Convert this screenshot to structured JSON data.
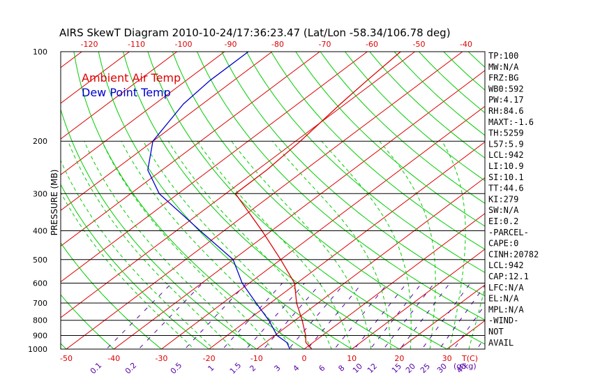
{
  "title": "AIRS SkewT Diagram 2010-10-24/17:36:23.47 (Lat/Lon -58.34/106.78 deg)",
  "legend": {
    "ambient": "Ambient Air Temp",
    "dewpoint": "Dew Point Temp"
  },
  "colors": {
    "ambient": "#dd0000",
    "dewpoint": "#0000cc",
    "isotherm": "#dd0000",
    "dry_adiabat": "#00cc00",
    "moist_adiabat": "#00cc00",
    "mixing_ratio": "#5500aa",
    "isobar": "#000000",
    "text": "#000000"
  },
  "stats": [
    "TP:100",
    "MW:N/A",
    "FRZ:BG",
    "WB0:592",
    "PW:4.17",
    "RH:84.6",
    "MAXT:-1.6",
    "TH:5259",
    "L57:5.9",
    "LCL:942",
    "LI:10.9",
    "SI:10.1",
    "TT:44.6",
    "KI:279",
    "SW:N/A",
    "EI:0.2",
    "-PARCEL-",
    "CAPE:0",
    "CINH:20782",
    "LCL:942",
    "CAP:12.1",
    "LFC:N/A",
    "EL:N/A",
    "MPL:N/A",
    "-WIND-",
    "NOT",
    "AVAIL"
  ],
  "chart_data": {
    "type": "line",
    "title": "AIRS SkewT Diagram 2010-10-24/17:36:23.47 (Lat/Lon -58.34/106.78 deg)",
    "ylabel": "PRESSURE (MB)",
    "xlabel": "T(C)",
    "mixing_ratio_label": "(g/kg)",
    "y_scale": "log",
    "ylim": [
      1000,
      100
    ],
    "pressure_ticks": [
      100,
      200,
      300,
      400,
      500,
      600,
      700,
      800,
      900,
      1000
    ],
    "pressure_tick_labels": [
      "100",
      "200",
      "300",
      "400",
      "500",
      "600",
      "700",
      "800",
      "900",
      "1000"
    ],
    "bottom_temp_ticks": [
      -50,
      -40,
      -30,
      -20,
      -10,
      0,
      10,
      20,
      30
    ],
    "bottom_temp_labels": [
      "-50",
      "-40",
      "-30",
      "-20",
      "-10",
      "0",
      "10",
      "20",
      "30"
    ],
    "top_temp_ticks": [
      -120,
      -110,
      -100,
      -90,
      -80,
      -70,
      -60,
      -50,
      -40
    ],
    "top_temp_labels": [
      "-120",
      "-110",
      "-100",
      "-90",
      "-80",
      "-70",
      "-60",
      "-50",
      "-40"
    ],
    "mixing_ratio_values": [
      0.1,
      0.2,
      0.5,
      1,
      1.5,
      2,
      3,
      4,
      6,
      8,
      10,
      12,
      15,
      20,
      25,
      30,
      40
    ],
    "mixing_ratio_labels": [
      "0.1",
      "0.2",
      "0.5",
      "1",
      "1.5",
      "2",
      "3",
      "4",
      "6",
      "8",
      "10",
      "12",
      "15",
      "20",
      "25",
      "30",
      "40"
    ],
    "series": [
      {
        "name": "Ambient Air Temp",
        "color": "#dd0000",
        "points": [
          {
            "p": 1000,
            "t": 1.6
          },
          {
            "p": 950,
            "t": -1.5
          },
          {
            "p": 900,
            "t": -3.5
          },
          {
            "p": 800,
            "t": -8.5
          },
          {
            "p": 700,
            "t": -14.5
          },
          {
            "p": 600,
            "t": -20.5
          },
          {
            "p": 500,
            "t": -30
          },
          {
            "p": 400,
            "t": -42
          },
          {
            "p": 300,
            "t": -58
          },
          {
            "p": 250,
            "t": -58
          },
          {
            "p": 200,
            "t": -59
          },
          {
            "p": 150,
            "t": -61
          },
          {
            "p": 125,
            "t": -62
          },
          {
            "p": 100,
            "t": -63
          }
        ]
      },
      {
        "name": "Dew Point Temp",
        "color": "#0000cc",
        "points": [
          {
            "p": 1000,
            "t": -3
          },
          {
            "p": 950,
            "t": -5.5
          },
          {
            "p": 900,
            "t": -9.5
          },
          {
            "p": 800,
            "t": -15.5
          },
          {
            "p": 700,
            "t": -23
          },
          {
            "p": 600,
            "t": -31.5
          },
          {
            "p": 500,
            "t": -40
          },
          {
            "p": 400,
            "t": -55
          },
          {
            "p": 300,
            "t": -74
          },
          {
            "p": 250,
            "t": -83
          },
          {
            "p": 200,
            "t": -90
          },
          {
            "p": 150,
            "t": -94
          },
          {
            "p": 125,
            "t": -95
          },
          {
            "p": 100,
            "t": -95
          }
        ]
      }
    ]
  }
}
